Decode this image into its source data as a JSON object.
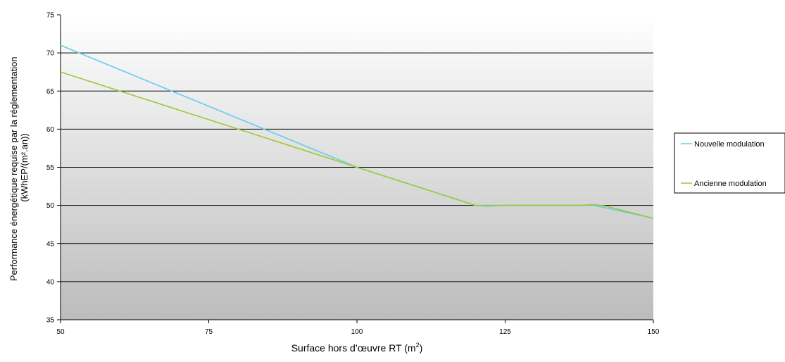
{
  "chart_data": {
    "type": "line",
    "title": "",
    "xlabel": {
      "prefix": "Surface hors d’œuvre RT (m",
      "superscript": "2",
      "suffix": ")"
    },
    "ylabel": {
      "line1": "Performance énergétique requise par la réglementation",
      "line2": "(kWhEP/(m².an))"
    },
    "xlim": [
      50,
      150
    ],
    "ylim": [
      35,
      75
    ],
    "x_ticks": [
      "50",
      "75",
      "100",
      "125",
      "150"
    ],
    "y_ticks": [
      "35",
      "40",
      "45",
      "50",
      "55",
      "60",
      "65",
      "70",
      "75"
    ],
    "grid": "horizontal",
    "background": "vertical-gradient-white-to-gray",
    "legend_position": "right",
    "series": [
      {
        "name": "Nouvelle modulation",
        "color": "#66ccee",
        "points": [
          [
            50,
            71
          ],
          [
            100,
            55
          ],
          [
            120,
            50
          ],
          [
            140,
            50
          ],
          [
            150,
            48.3
          ]
        ]
      },
      {
        "name": "Ancienne modulation",
        "color": "#99cc33",
        "points": [
          [
            50,
            67.5
          ],
          [
            100,
            55
          ],
          [
            120,
            50
          ],
          [
            122,
            49.9
          ],
          [
            125,
            50
          ],
          [
            137,
            50
          ],
          [
            140,
            50.1
          ],
          [
            142,
            49.9
          ],
          [
            150,
            48.3
          ]
        ]
      }
    ]
  }
}
